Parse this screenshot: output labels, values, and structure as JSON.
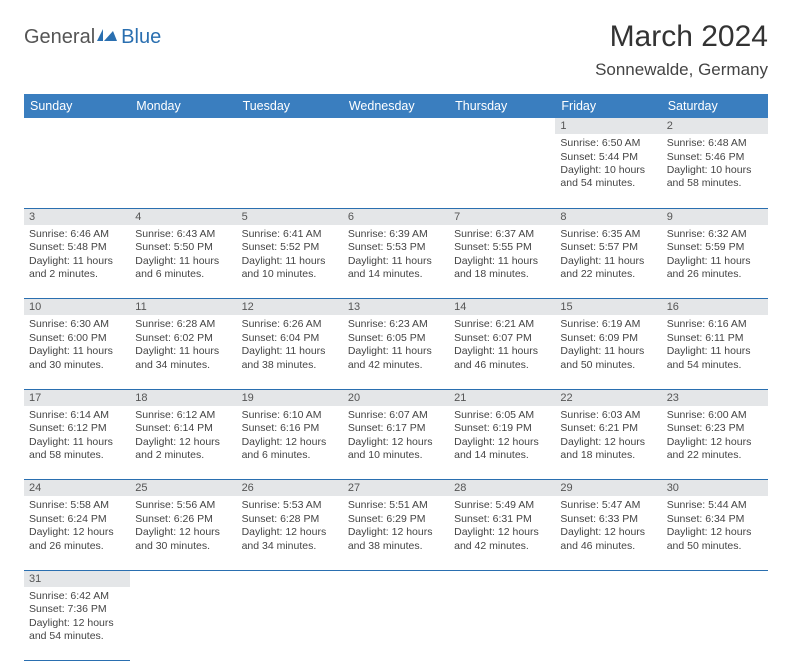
{
  "logo": {
    "general": "General",
    "blue": "Blue"
  },
  "header": {
    "month": "March 2024",
    "location": "Sonnewalde, Germany"
  },
  "columns": [
    "Sunday",
    "Monday",
    "Tuesday",
    "Wednesday",
    "Thursday",
    "Friday",
    "Saturday"
  ],
  "colors": {
    "header_bg": "#3a7ebf",
    "header_text": "#ffffff",
    "daynum_bg": "#e4e6e8",
    "divider": "#2a6fb0",
    "text": "#444444",
    "background": "#ffffff"
  },
  "weeks": [
    [
      null,
      null,
      null,
      null,
      null,
      {
        "n": "1",
        "sr": "Sunrise: 6:50 AM",
        "ss": "Sunset: 5:44 PM",
        "dl": "Daylight: 10 hours and 54 minutes."
      },
      {
        "n": "2",
        "sr": "Sunrise: 6:48 AM",
        "ss": "Sunset: 5:46 PM",
        "dl": "Daylight: 10 hours and 58 minutes."
      }
    ],
    [
      {
        "n": "3",
        "sr": "Sunrise: 6:46 AM",
        "ss": "Sunset: 5:48 PM",
        "dl": "Daylight: 11 hours and 2 minutes."
      },
      {
        "n": "4",
        "sr": "Sunrise: 6:43 AM",
        "ss": "Sunset: 5:50 PM",
        "dl": "Daylight: 11 hours and 6 minutes."
      },
      {
        "n": "5",
        "sr": "Sunrise: 6:41 AM",
        "ss": "Sunset: 5:52 PM",
        "dl": "Daylight: 11 hours and 10 minutes."
      },
      {
        "n": "6",
        "sr": "Sunrise: 6:39 AM",
        "ss": "Sunset: 5:53 PM",
        "dl": "Daylight: 11 hours and 14 minutes."
      },
      {
        "n": "7",
        "sr": "Sunrise: 6:37 AM",
        "ss": "Sunset: 5:55 PM",
        "dl": "Daylight: 11 hours and 18 minutes."
      },
      {
        "n": "8",
        "sr": "Sunrise: 6:35 AM",
        "ss": "Sunset: 5:57 PM",
        "dl": "Daylight: 11 hours and 22 minutes."
      },
      {
        "n": "9",
        "sr": "Sunrise: 6:32 AM",
        "ss": "Sunset: 5:59 PM",
        "dl": "Daylight: 11 hours and 26 minutes."
      }
    ],
    [
      {
        "n": "10",
        "sr": "Sunrise: 6:30 AM",
        "ss": "Sunset: 6:00 PM",
        "dl": "Daylight: 11 hours and 30 minutes."
      },
      {
        "n": "11",
        "sr": "Sunrise: 6:28 AM",
        "ss": "Sunset: 6:02 PM",
        "dl": "Daylight: 11 hours and 34 minutes."
      },
      {
        "n": "12",
        "sr": "Sunrise: 6:26 AM",
        "ss": "Sunset: 6:04 PM",
        "dl": "Daylight: 11 hours and 38 minutes."
      },
      {
        "n": "13",
        "sr": "Sunrise: 6:23 AM",
        "ss": "Sunset: 6:05 PM",
        "dl": "Daylight: 11 hours and 42 minutes."
      },
      {
        "n": "14",
        "sr": "Sunrise: 6:21 AM",
        "ss": "Sunset: 6:07 PM",
        "dl": "Daylight: 11 hours and 46 minutes."
      },
      {
        "n": "15",
        "sr": "Sunrise: 6:19 AM",
        "ss": "Sunset: 6:09 PM",
        "dl": "Daylight: 11 hours and 50 minutes."
      },
      {
        "n": "16",
        "sr": "Sunrise: 6:16 AM",
        "ss": "Sunset: 6:11 PM",
        "dl": "Daylight: 11 hours and 54 minutes."
      }
    ],
    [
      {
        "n": "17",
        "sr": "Sunrise: 6:14 AM",
        "ss": "Sunset: 6:12 PM",
        "dl": "Daylight: 11 hours and 58 minutes."
      },
      {
        "n": "18",
        "sr": "Sunrise: 6:12 AM",
        "ss": "Sunset: 6:14 PM",
        "dl": "Daylight: 12 hours and 2 minutes."
      },
      {
        "n": "19",
        "sr": "Sunrise: 6:10 AM",
        "ss": "Sunset: 6:16 PM",
        "dl": "Daylight: 12 hours and 6 minutes."
      },
      {
        "n": "20",
        "sr": "Sunrise: 6:07 AM",
        "ss": "Sunset: 6:17 PM",
        "dl": "Daylight: 12 hours and 10 minutes."
      },
      {
        "n": "21",
        "sr": "Sunrise: 6:05 AM",
        "ss": "Sunset: 6:19 PM",
        "dl": "Daylight: 12 hours and 14 minutes."
      },
      {
        "n": "22",
        "sr": "Sunrise: 6:03 AM",
        "ss": "Sunset: 6:21 PM",
        "dl": "Daylight: 12 hours and 18 minutes."
      },
      {
        "n": "23",
        "sr": "Sunrise: 6:00 AM",
        "ss": "Sunset: 6:23 PM",
        "dl": "Daylight: 12 hours and 22 minutes."
      }
    ],
    [
      {
        "n": "24",
        "sr": "Sunrise: 5:58 AM",
        "ss": "Sunset: 6:24 PM",
        "dl": "Daylight: 12 hours and 26 minutes."
      },
      {
        "n": "25",
        "sr": "Sunrise: 5:56 AM",
        "ss": "Sunset: 6:26 PM",
        "dl": "Daylight: 12 hours and 30 minutes."
      },
      {
        "n": "26",
        "sr": "Sunrise: 5:53 AM",
        "ss": "Sunset: 6:28 PM",
        "dl": "Daylight: 12 hours and 34 minutes."
      },
      {
        "n": "27",
        "sr": "Sunrise: 5:51 AM",
        "ss": "Sunset: 6:29 PM",
        "dl": "Daylight: 12 hours and 38 minutes."
      },
      {
        "n": "28",
        "sr": "Sunrise: 5:49 AM",
        "ss": "Sunset: 6:31 PM",
        "dl": "Daylight: 12 hours and 42 minutes."
      },
      {
        "n": "29",
        "sr": "Sunrise: 5:47 AM",
        "ss": "Sunset: 6:33 PM",
        "dl": "Daylight: 12 hours and 46 minutes."
      },
      {
        "n": "30",
        "sr": "Sunrise: 5:44 AM",
        "ss": "Sunset: 6:34 PM",
        "dl": "Daylight: 12 hours and 50 minutes."
      }
    ],
    [
      {
        "n": "31",
        "sr": "Sunrise: 6:42 AM",
        "ss": "Sunset: 7:36 PM",
        "dl": "Daylight: 12 hours and 54 minutes."
      },
      null,
      null,
      null,
      null,
      null,
      null
    ]
  ]
}
